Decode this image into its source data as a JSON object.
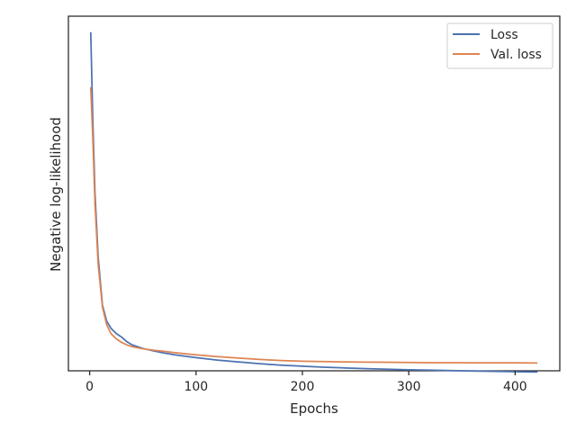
{
  "chart_data": {
    "type": "line",
    "title": "",
    "xlabel": "Epochs",
    "ylabel": "Negative log-likelihood",
    "xlim": [
      -20,
      442
    ],
    "ylim": [
      0,
      100
    ],
    "xticks": [
      0,
      100,
      200,
      300,
      400
    ],
    "yticks": [],
    "grid": false,
    "legend_placement": "top-right",
    "colors": {
      "loss": "#4c72b0",
      "val_loss": "#dd8452"
    },
    "series": [
      {
        "name": "Loss",
        "color": "#4c72b0",
        "points": [
          [
            1,
            95.5
          ],
          [
            3,
            70
          ],
          [
            5,
            50
          ],
          [
            8,
            32
          ],
          [
            12,
            18.5
          ],
          [
            16,
            14
          ],
          [
            20,
            12
          ],
          [
            25,
            10.5
          ],
          [
            30,
            9.5
          ],
          [
            35,
            8.2
          ],
          [
            40,
            7.3
          ],
          [
            50,
            6.3
          ],
          [
            60,
            5.6
          ],
          [
            70,
            5.0
          ],
          [
            80,
            4.5
          ],
          [
            100,
            3.7
          ],
          [
            120,
            3.0
          ],
          [
            140,
            2.5
          ],
          [
            160,
            2.0
          ],
          [
            180,
            1.6
          ],
          [
            200,
            1.3
          ],
          [
            220,
            1.0
          ],
          [
            240,
            0.8
          ],
          [
            260,
            0.6
          ],
          [
            280,
            0.45
          ],
          [
            300,
            0.3
          ],
          [
            320,
            0.2
          ],
          [
            340,
            0.05
          ],
          [
            360,
            -0.05
          ],
          [
            380,
            -0.15
          ],
          [
            400,
            -0.25
          ],
          [
            421,
            -0.35
          ]
        ]
      },
      {
        "name": "Val. loss",
        "color": "#dd8452",
        "points": [
          [
            1,
            80
          ],
          [
            3,
            65
          ],
          [
            5,
            47
          ],
          [
            8,
            30
          ],
          [
            12,
            18
          ],
          [
            16,
            13
          ],
          [
            20,
            10.5
          ],
          [
            25,
            9
          ],
          [
            30,
            8
          ],
          [
            35,
            7.3
          ],
          [
            40,
            6.8
          ],
          [
            50,
            6.2
          ],
          [
            60,
            5.8
          ],
          [
            70,
            5.5
          ],
          [
            80,
            5.1
          ],
          [
            100,
            4.5
          ],
          [
            120,
            4.0
          ],
          [
            140,
            3.6
          ],
          [
            160,
            3.2
          ],
          [
            180,
            2.9
          ],
          [
            200,
            2.7
          ],
          [
            220,
            2.6
          ],
          [
            240,
            2.5
          ],
          [
            260,
            2.45
          ],
          [
            280,
            2.4
          ],
          [
            300,
            2.35
          ],
          [
            320,
            2.3
          ],
          [
            340,
            2.3
          ],
          [
            360,
            2.25
          ],
          [
            380,
            2.25
          ],
          [
            400,
            2.25
          ],
          [
            421,
            2.2
          ]
        ]
      }
    ]
  }
}
